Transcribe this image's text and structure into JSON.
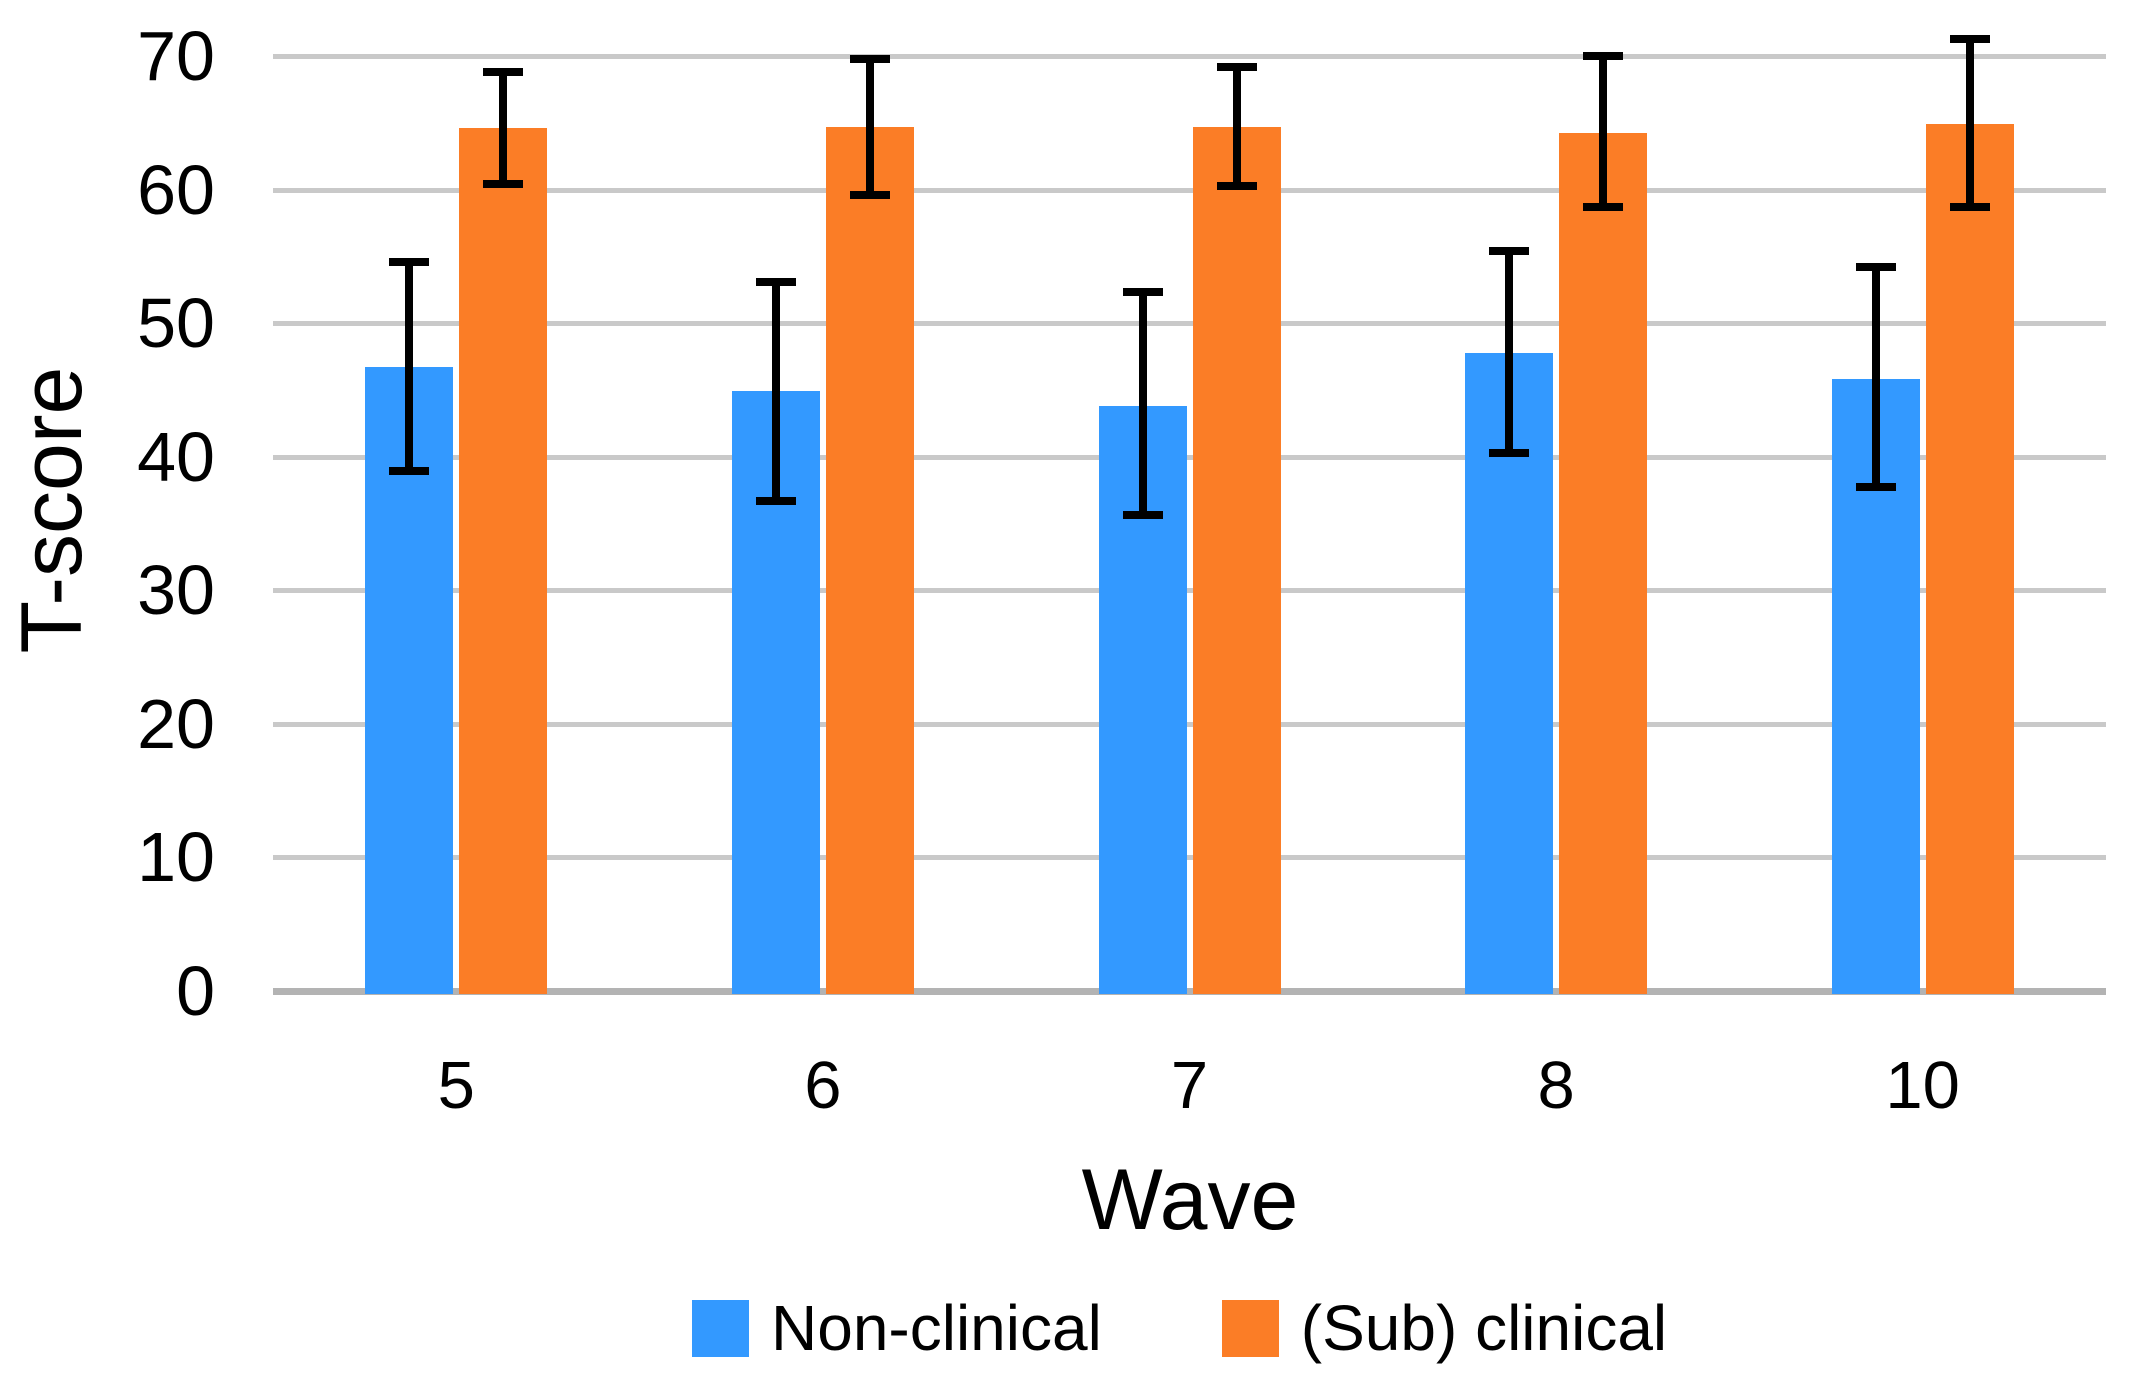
{
  "chart_data": {
    "type": "bar",
    "title": "",
    "xlabel": "Wave",
    "ylabel": "T-score",
    "categories": [
      "5",
      "6",
      "7",
      "8",
      "10"
    ],
    "yticks": [
      0,
      10,
      20,
      30,
      40,
      50,
      60,
      70
    ],
    "ylim": [
      0,
      70
    ],
    "grid": true,
    "grid_color": "#c9c9c9",
    "baseline_color": "#b3b3b3",
    "error_bar_color": "#000000",
    "legend_position": "bottom",
    "series": [
      {
        "name": "Non-clinical",
        "color": "#3399FF",
        "values": [
          46.7,
          44.9,
          43.8,
          47.8,
          45.8
        ],
        "error_low": [
          38.9,
          36.7,
          35.6,
          40.3,
          37.7
        ],
        "error_high": [
          54.6,
          53.1,
          52.3,
          55.4,
          54.2
        ]
      },
      {
        "name": "(Sub) clinical",
        "color": "#FB7D26",
        "values": [
          64.6,
          64.7,
          64.7,
          64.2,
          64.9
        ],
        "error_low": [
          60.4,
          59.6,
          60.3,
          58.7,
          58.7
        ],
        "error_high": [
          68.8,
          69.8,
          69.2,
          70.0,
          71.3
        ]
      }
    ]
  }
}
